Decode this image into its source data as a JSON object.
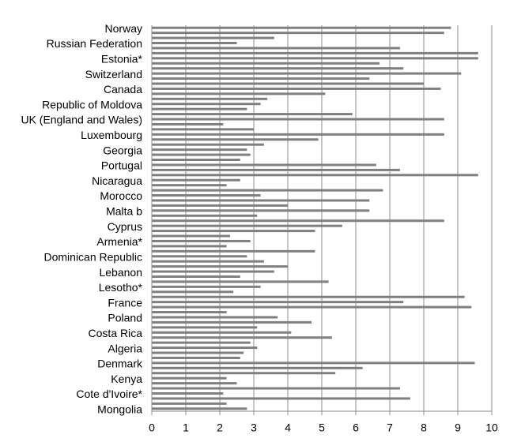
{
  "chart_data": {
    "type": "barh",
    "color": "#7f7f7f",
    "grid": true,
    "categories": [
      "Norway",
      null,
      null,
      "Russian Federation",
      null,
      null,
      "Estonia*",
      null,
      null,
      "Switzerland",
      null,
      null,
      "Canada",
      null,
      null,
      "Republic of Moldova",
      null,
      null,
      "UK (England and Wales)",
      null,
      null,
      "Luxembourg",
      null,
      null,
      "Georgia",
      null,
      null,
      "Portugal",
      null,
      null,
      "Nicaragua",
      null,
      null,
      "Morocco",
      null,
      null,
      "Malta b",
      null,
      null,
      "Cyprus",
      null,
      null,
      "Armenia*",
      null,
      null,
      "Dominican Republic",
      null,
      null,
      "Lebanon",
      null,
      null,
      "Lesotho*",
      null,
      null,
      "France",
      null,
      null,
      "Poland",
      null,
      null,
      "Costa Rica",
      null,
      null,
      "Algeria",
      null,
      null,
      "Denmark",
      null,
      null,
      "Kenya",
      null,
      null,
      "Cote d'Ivoire*",
      null,
      null,
      "Mongolia"
    ],
    "values": [
      8.8,
      8.6,
      3.6,
      2.5,
      7.3,
      9.6,
      9.6,
      6.7,
      7.4,
      9.1,
      6.4,
      8.0,
      8.5,
      5.1,
      3.4,
      3.2,
      2.8,
      5.9,
      8.6,
      2.1,
      3.0,
      8.6,
      4.9,
      3.3,
      2.8,
      2.9,
      2.6,
      6.6,
      7.3,
      9.6,
      2.6,
      2.2,
      6.8,
      3.2,
      6.4,
      4.0,
      6.4,
      3.1,
      8.6,
      5.6,
      4.8,
      2.3,
      2.9,
      2.2,
      4.8,
      2.8,
      3.3,
      4.0,
      3.6,
      2.6,
      5.2,
      3.2,
      2.4,
      9.2,
      7.4,
      9.4,
      2.2,
      3.7,
      4.7,
      3.1,
      4.1,
      5.3,
      2.9,
      3.1,
      2.7,
      2.6,
      9.5,
      6.2,
      5.4,
      2.2,
      2.5,
      7.3,
      2.1,
      7.6,
      2.2,
      2.8
    ],
    "xlim": [
      0,
      10
    ],
    "xticks": [
      0,
      1,
      2,
      3,
      4,
      5,
      6,
      7,
      8,
      9,
      10
    ]
  }
}
